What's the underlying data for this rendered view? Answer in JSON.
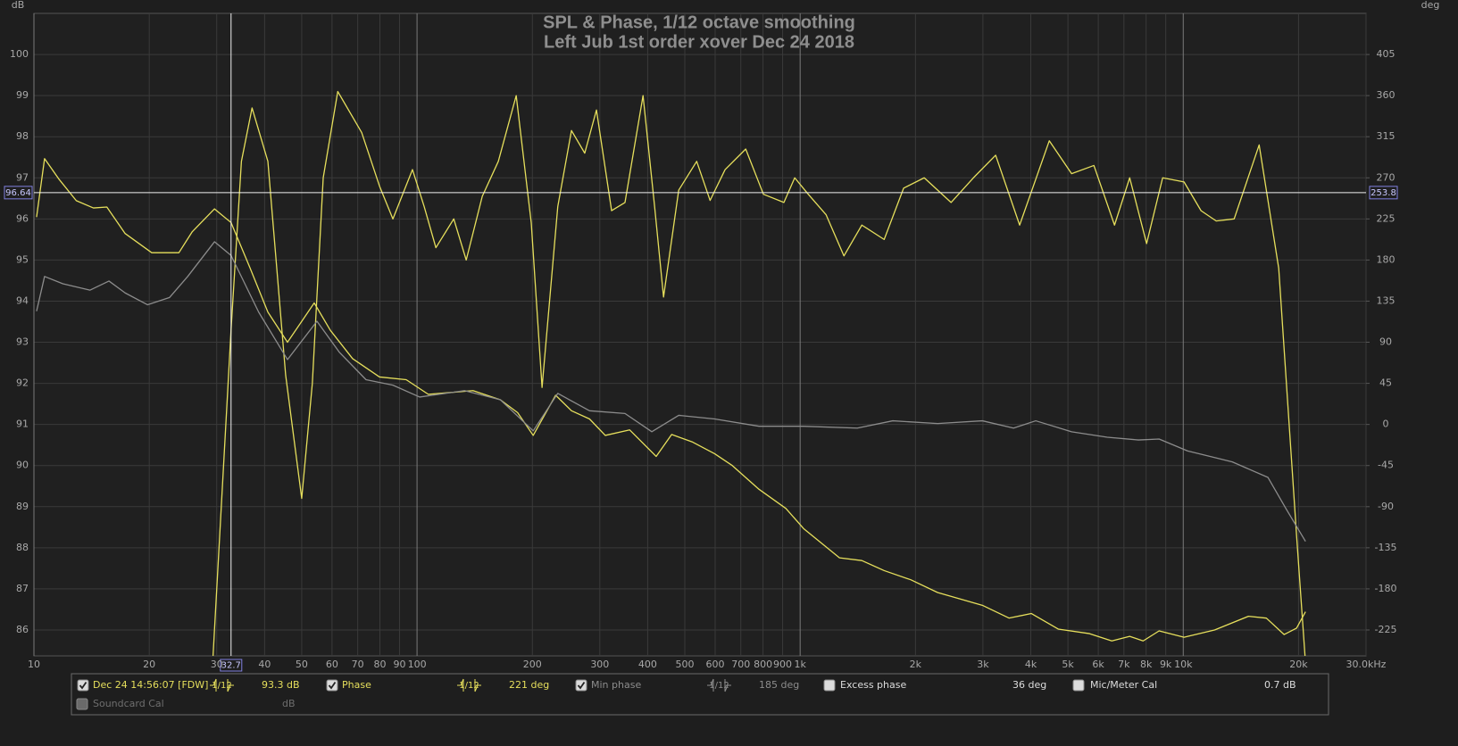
{
  "chart_data": {
    "type": "line",
    "title": "SPL & Phase, 1/12 octave smoothing",
    "subtitle": "Left Jub 1st order xover Dec 24 2018",
    "y_unit": "dB",
    "y2_unit": "deg",
    "xscale": "log",
    "grid": true,
    "xlim": [
      10,
      30000
    ],
    "ylim": [
      85.37,
      101
    ],
    "y2lim": [
      -253.35,
      450
    ],
    "xticks": [
      10,
      20,
      30,
      40,
      50,
      60,
      70,
      80,
      90,
      100,
      200,
      300,
      400,
      500,
      600,
      700,
      800,
      900,
      {
        "value": 1000,
        "label": "1k"
      },
      {
        "value": 2000,
        "label": "2k"
      },
      {
        "value": 3000,
        "label": "3k"
      },
      {
        "value": 4000,
        "label": "4k"
      },
      {
        "value": 5000,
        "label": "5k"
      },
      {
        "value": 6000,
        "label": "6k"
      },
      {
        "value": 7000,
        "label": "7k"
      },
      {
        "value": 8000,
        "label": "8k"
      },
      {
        "value": 9000,
        "label": "9k"
      },
      {
        "value": 10000,
        "label": "10k"
      },
      {
        "value": 20000,
        "label": "20k"
      },
      {
        "value": 30000,
        "label": "30.0kHz"
      }
    ],
    "yticks": [
      86,
      87,
      88,
      89,
      90,
      91,
      92,
      93,
      94,
      95,
      96,
      97,
      98,
      99,
      100
    ],
    "y2ticks": [
      -225,
      -180,
      -135,
      -90,
      -45,
      0,
      45,
      90,
      135,
      180,
      225,
      270,
      315,
      360,
      405
    ],
    "series": [
      {
        "name": "Dec 24 14:56:07 [FDW]",
        "color": "#e6df5c",
        "smoothing": "1/12",
        "readout": "93.3 dB",
        "checked": true,
        "x": [
          29,
          32.7,
          34.8,
          37.1,
          40.8,
          45.4,
          50,
          53.3,
          56.9,
          62.1,
          71.7,
          79.8,
          86.5,
          97.3,
          104.4,
          112,
          124.7,
          134.4,
          148,
          163,
          181.5,
          198.7,
          212,
          233,
          253,
          274,
          294,
          322,
          349,
          389,
          417,
          440,
          482,
          537,
          582,
          637,
          721,
          802,
          907,
          968,
          1050,
          1169,
          1301,
          1449,
          1657,
          1863,
          2108,
          2477,
          2833,
          3238,
          3741,
          4470,
          5112,
          5845,
          6616,
          7248,
          8023,
          8836,
          10048,
          11130,
          12190,
          13580,
          15780,
          17750,
          19760,
          20850
        ],
        "values": [
          84.5,
          93.3,
          97.4,
          98.7,
          97.4,
          92.2,
          89.2,
          92.0,
          97.0,
          99.1,
          98.1,
          96.8,
          96.0,
          97.2,
          96.3,
          95.3,
          96.0,
          95.0,
          96.55,
          97.4,
          99.0,
          95.9,
          91.9,
          96.3,
          98.15,
          97.6,
          98.65,
          96.2,
          96.4,
          99.0,
          96.3,
          94.1,
          96.7,
          97.4,
          96.45,
          97.2,
          97.7,
          96.6,
          96.4,
          97.0,
          96.6,
          96.1,
          95.1,
          95.85,
          95.5,
          96.75,
          97.0,
          96.4,
          97.0,
          97.55,
          95.85,
          97.9,
          97.1,
          97.3,
          95.85,
          97.0,
          95.4,
          97.0,
          96.9,
          96.2,
          95.95,
          96.0,
          97.8,
          94.8,
          88.3,
          85.2
        ]
      },
      {
        "name": "Phase",
        "color": "#e6df5c",
        "axis": "y2",
        "smoothing": "1/12",
        "readout": "221 deg",
        "checked": true,
        "x": [
          10.16,
          10.66,
          11.6,
          12.9,
          14.3,
          15.5,
          17.3,
          20.3,
          23.9,
          25.9,
          29.6,
          32.7,
          36.6,
          40.8,
          45.9,
          50.6,
          53.9,
          59.4,
          67.9,
          79.8,
          93.7,
          107,
          122.7,
          140,
          165,
          183,
          201,
          230,
          253,
          282,
          310,
          359,
          421,
          462,
          522,
          598,
          665,
          781,
          918,
          1021,
          1267,
          1449,
          1657,
          1944,
          2285,
          2990,
          3512,
          4014,
          4717,
          5693,
          6510,
          7248,
          7858,
          8649,
          10048,
          12070,
          14800,
          16480,
          18340,
          19760,
          20850
        ],
        "values": [
          227,
          291,
          269,
          245,
          237,
          238,
          209,
          188,
          188,
          211,
          236,
          221,
          172,
          123,
          90,
          116,
          133,
          103,
          72,
          52,
          49,
          33,
          35,
          37,
          27,
          13,
          -12,
          32,
          15,
          6,
          -12,
          -6,
          -35,
          -11,
          -19,
          -32,
          -45,
          -71,
          -92,
          -114,
          -146,
          -149,
          -160,
          -170,
          -184,
          -198,
          -212,
          -207,
          -224,
          -229,
          -237,
          -232,
          -237,
          -226,
          -233,
          -225,
          -210,
          -212,
          -230,
          -223,
          -205
        ]
      },
      {
        "name": "Min phase",
        "color": "#8c8c8c",
        "axis": "y2",
        "smoothing": "1/12",
        "readout": "185 deg",
        "checked": true,
        "x": [
          10.16,
          10.66,
          11.9,
          14.0,
          15.7,
          17.3,
          19.8,
          22.6,
          25.2,
          29.6,
          32.7,
          38.6,
          45.9,
          54.8,
          62.7,
          73.6,
          86.5,
          101.6,
          133,
          165,
          201,
          233,
          282,
          349,
          410,
          482,
          598,
          781,
          1021,
          1410,
          1745,
          2285,
          2990,
          3606,
          4121,
          5112,
          6339,
          7640,
          8649,
          10270,
          13430,
          16640,
          18530,
          20850
        ],
        "values": [
          124,
          162,
          154,
          147,
          157,
          144,
          131,
          139,
          162,
          200,
          185,
          123,
          71,
          113,
          79,
          49,
          43,
          30,
          37,
          27,
          -7,
          34,
          15,
          12,
          -8,
          10,
          6,
          -2,
          -2,
          -4,
          4,
          1,
          4,
          -4,
          4,
          -8,
          -14,
          -17,
          -16,
          -29,
          -41,
          -58,
          -92,
          -128
        ]
      }
    ],
    "cursor": {
      "x": 32.7,
      "y": 96.64,
      "y2": 253.8
    },
    "panel_items": [
      {
        "label": "Excess phase",
        "readout": "36 deg",
        "checked": false
      },
      {
        "label": "Mic/Meter Cal",
        "readout": "0.7 dB",
        "checked": false
      },
      {
        "label": "Soundcard Cal",
        "readout": "dB",
        "checked": false
      }
    ]
  }
}
